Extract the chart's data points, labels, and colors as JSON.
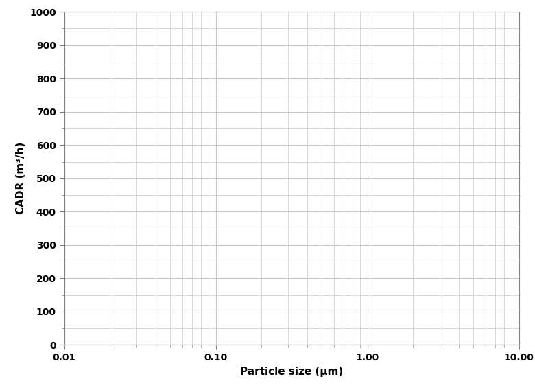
{
  "title": "",
  "xlabel": "Particle size (μm)",
  "ylabel": "CADR (m³/h)",
  "xmin": 0.01,
  "xmax": 10.0,
  "ymin": 0,
  "ymax": 1000,
  "yticks": [
    0,
    100,
    200,
    300,
    400,
    500,
    600,
    700,
    800,
    900,
    1000
  ],
  "xtick_labels": [
    "0.01",
    "0.10",
    "1.00",
    "10.00"
  ],
  "xtick_positions": [
    0.01,
    0.1,
    1.0,
    10.0
  ],
  "background_color": "#ffffff",
  "grid_color": "#c8c8c8",
  "axis_color": "#808080",
  "xlabel_fontsize": 11,
  "ylabel_fontsize": 11,
  "tick_fontsize": 10,
  "label_fontweight": "bold"
}
